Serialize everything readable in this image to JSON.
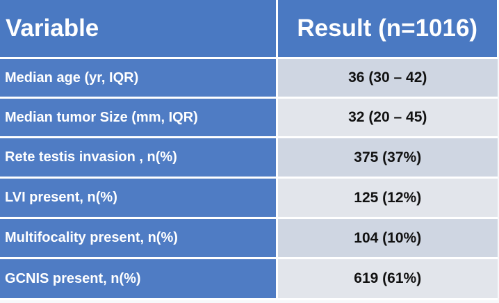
{
  "table": {
    "headers": {
      "variable": "Variable",
      "result": "Result (n=1016)"
    },
    "rows": [
      {
        "variable": "Median age (yr, IQR)",
        "result": "36 (30 – 42)"
      },
      {
        "variable": "Median tumor Size (mm, IQR)",
        "result": "32 (20 – 45)"
      },
      {
        "variable": "Rete testis invasion , n(%)",
        "result": "375 (37%)"
      },
      {
        "variable": "LVI present, n(%)",
        "result": "125 (12%)"
      },
      {
        "variable": "Multifocality present, n(%)",
        "result": "104 (10%)"
      },
      {
        "variable": "GCNIS present, n(%)",
        "result": "619 (61%)"
      }
    ]
  },
  "colors": {
    "header_blue": "#4a79c2",
    "variable_cell_blue": "#4f7cc4",
    "result_band_dark": "#cfd6e2",
    "result_band_light": "#e2e5eb"
  }
}
